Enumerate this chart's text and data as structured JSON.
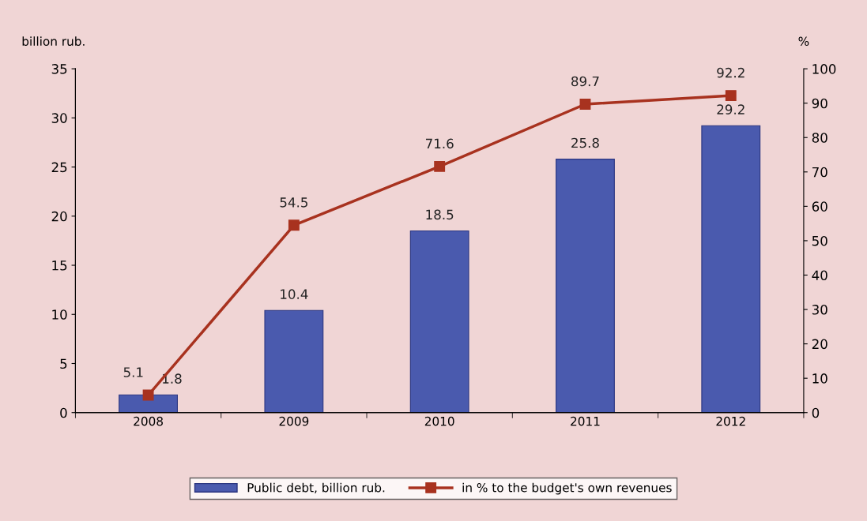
{
  "chart_data": {
    "type": "bar",
    "categories": [
      "2008",
      "2009",
      "2010",
      "2011",
      "2012"
    ],
    "ylabel": "billion rub.",
    "y2label": "%",
    "series": [
      {
        "name": "Public debt, billion rub.",
        "color": "#4a5aae",
        "values": [
          1.8,
          10.4,
          18.5,
          25.8,
          29.2
        ]
      },
      {
        "name": "in % to the budget's own revenues",
        "type": "line",
        "axis": "y2",
        "color": "#a8321f",
        "marker": "square",
        "values": [
          5.1,
          54.5,
          71.6,
          89.7,
          92.2
        ]
      }
    ],
    "ylim": [
      0,
      35
    ],
    "yticks": [
      0,
      5,
      10,
      15,
      20,
      25,
      30,
      35
    ],
    "y2lim": [
      0,
      100
    ],
    "y2ticks": [
      0,
      10,
      20,
      30,
      40,
      50,
      60,
      70,
      80,
      90,
      100
    ],
    "data_labels": true,
    "legend": "bottom",
    "grid": false
  }
}
